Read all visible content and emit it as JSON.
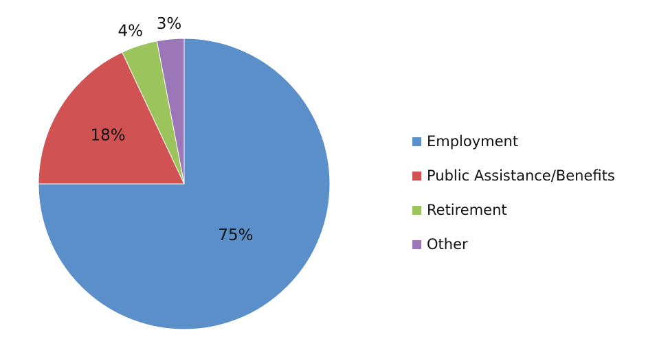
{
  "chart_data": {
    "type": "pie",
    "categories": [
      "Employment",
      "Public Assistance/Benefits",
      "Retirement",
      "Other"
    ],
    "values": [
      75,
      18,
      4,
      3
    ],
    "data_labels": [
      "75%",
      "18%",
      "4%",
      "3%"
    ],
    "colors": [
      "#5b8fc9",
      "#d05253",
      "#9bc45c",
      "#9b77b8"
    ],
    "start_angle": "12 o'clock",
    "direction": "clockwise",
    "legend_position": "right"
  }
}
